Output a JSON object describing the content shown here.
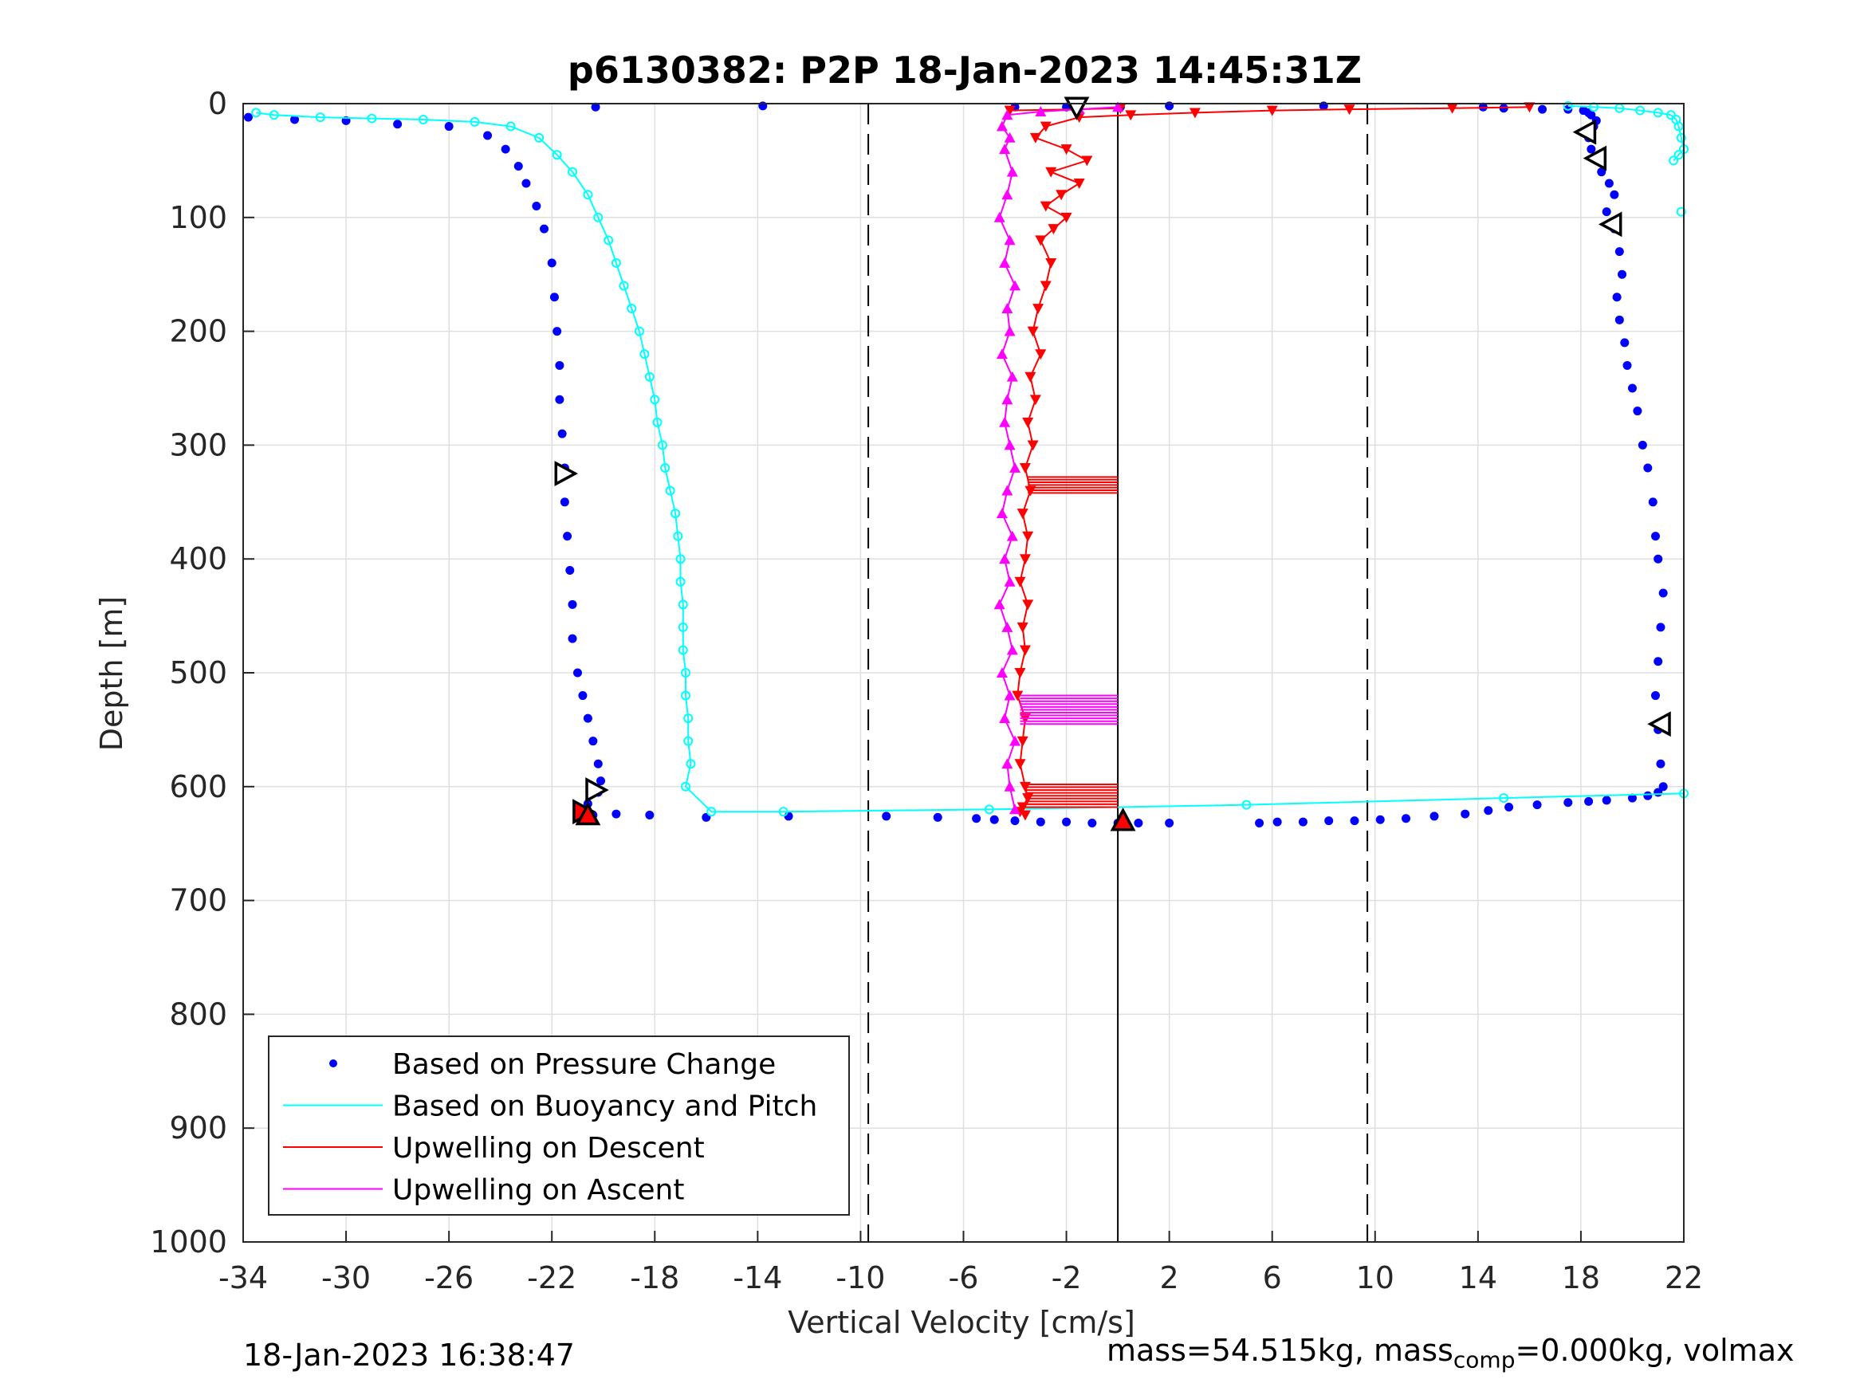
{
  "chart_data": {
    "type": "scatter",
    "title": "p6130382: P2P 18-Jan-2023 14:45:31Z",
    "xlabel": "Vertical Velocity [cm/s]",
    "ylabel": "Depth [m]",
    "xlim": [
      -34,
      22
    ],
    "ylim": [
      0,
      1000
    ],
    "y_reversed": true,
    "xticks": [
      -34,
      -30,
      -26,
      -22,
      -18,
      -14,
      -10,
      -6,
      -2,
      2,
      6,
      10,
      14,
      18,
      22
    ],
    "yticks": [
      0,
      100,
      200,
      300,
      400,
      500,
      600,
      700,
      800,
      900,
      1000
    ],
    "grid": true,
    "legend_position": "bottom-left",
    "reference_lines": [
      {
        "x": -9.7,
        "style": "dashed",
        "color": "#000000"
      },
      {
        "x": 9.7,
        "style": "dashed",
        "color": "#000000"
      },
      {
        "x": 0,
        "style": "solid",
        "color": "#000000"
      }
    ],
    "series": [
      {
        "name": "Based on Pressure Change",
        "style": "dots",
        "color": "#0000ff",
        "segments": [
          {
            "x": [
              -33.8,
              -32,
              -30,
              -28,
              -26,
              -24.5,
              -23.8,
              -23.3,
              -23,
              -22.6,
              -22.3,
              -22,
              -21.9,
              -21.8,
              -21.7,
              -21.7,
              -21.6,
              -21.5,
              -21.5,
              -21.4,
              -21.3,
              -21.2,
              -21.2,
              -21,
              -20.8,
              -20.6,
              -20.4,
              -20.2,
              -20.1,
              -20.2,
              -20.6,
              -20.9
            ],
            "y": [
              12,
              14,
              15,
              18,
              20,
              28,
              40,
              55,
              70,
              90,
              110,
              140,
              170,
              200,
              230,
              260,
              290,
              320,
              350,
              380,
              410,
              440,
              470,
              500,
              520,
              540,
              560,
              580,
              595,
              605,
              615,
              622
            ]
          },
          {
            "x": [
              -20.4,
              -19.5,
              -18.2,
              -16,
              -12.8,
              -9,
              -7,
              -5.5,
              -4.8,
              -4,
              -3,
              -2,
              -1,
              0,
              0.8,
              2,
              5.5,
              6.2,
              7.2,
              8.2,
              9.2,
              10.2,
              11.2,
              12.3,
              13.5,
              14.4,
              15.2,
              16.3,
              17.5,
              18.3,
              19,
              20,
              20.6,
              21,
              21.2
            ],
            "y": [
              625,
              624,
              625,
              627,
              626,
              626,
              627,
              628,
              629,
              630,
              631,
              631,
              632,
              632,
              632,
              632,
              632,
              631,
              631,
              630,
              630,
              629,
              628,
              626,
              624,
              621,
              618,
              616,
              614,
              613,
              612,
              610,
              608,
              605,
              600
            ]
          },
          {
            "x": [
              21.1,
              21.0,
              20.9,
              21.0,
              21.1,
              21.2,
              21.0,
              20.9,
              20.8,
              20.6,
              20.4,
              20.2,
              20.0,
              19.8,
              19.7,
              19.5,
              19.4,
              19.6,
              19.5,
              19.3,
              19.0,
              19.3,
              19.1,
              18.8,
              18.6,
              18.4,
              18.3,
              18.5,
              18.6,
              18.4,
              18.3,
              18.1,
              17.5,
              16.5,
              15,
              14.2
            ],
            "y": [
              580,
              550,
              520,
              490,
              460,
              430,
              400,
              380,
              350,
              320,
              300,
              270,
              250,
              230,
              210,
              190,
              170,
              150,
              130,
              110,
              95,
              80,
              70,
              60,
              50,
              40,
              30,
              20,
              15,
              10,
              8,
              6,
              5,
              5,
              4,
              3
            ]
          },
          {
            "x": [
              -20.3,
              -13.8,
              2,
              8,
              0.1,
              -2,
              -4
            ],
            "y": [
              3,
              2,
              2,
              2,
              3,
              3,
              3
            ]
          }
        ]
      },
      {
        "name": "Based on Buoyancy and Pitch",
        "style": "line-markers",
        "color": "#00ffff",
        "segments": [
          {
            "x": [
              -33.5,
              -32.8,
              -31,
              -29,
              -27,
              -25,
              -23.6,
              -22.5,
              -21.8,
              -21.2,
              -20.6,
              -20.2,
              -19.8,
              -19.5,
              -19.2,
              -18.9,
              -18.6,
              -18.4,
              -18.2,
              -18.0,
              -17.9,
              -17.7,
              -17.6,
              -17.4,
              -17.2,
              -17.1,
              -17.0,
              -17.0,
              -16.9,
              -16.9,
              -16.9,
              -16.8,
              -16.8,
              -16.7,
              -16.7,
              -16.6,
              -16.8,
              -15.8,
              -13,
              -5,
              5,
              15,
              22
            ],
            "y": [
              8,
              10,
              12,
              13,
              14,
              16,
              20,
              30,
              45,
              60,
              80,
              100,
              120,
              140,
              160,
              180,
              200,
              220,
              240,
              260,
              280,
              300,
              320,
              340,
              360,
              380,
              400,
              420,
              440,
              460,
              480,
              500,
              520,
              540,
              560,
              580,
              600,
              622,
              622,
              620,
              616,
              610,
              606
            ]
          },
          {
            "x": [
              17.5,
              18.5,
              19.5,
              20.3,
              21,
              21.5,
              21.7,
              21.8,
              21.9,
              22,
              21.8,
              21.6
            ],
            "y": [
              2,
              3,
              4,
              6,
              8,
              10,
              14,
              20,
              30,
              40,
              45,
              50
            ]
          },
          {
            "x": [
              21.9
            ],
            "y": [
              95
            ]
          }
        ]
      },
      {
        "name": "Upwelling on Descent",
        "style": "line-markers",
        "color": "#ff0000",
        "segments": [
          {
            "x": [
              16,
              13,
              9,
              6,
              3,
              0.5,
              -1.5,
              -2.8,
              -3.2,
              -2.0,
              -1.2,
              -2.6,
              -1.5,
              -2.2,
              -2.8,
              -2.0,
              -2.5,
              -3.0,
              -2.6,
              -2.8,
              -3.1,
              -3.3,
              -3.0,
              -3.4,
              -3.2,
              -3.5,
              -3.3,
              -3.6,
              -3.4,
              -3.7,
              -3.5,
              -3.6,
              -3.8,
              -3.5,
              -3.7,
              -3.6,
              -3.8,
              -3.9,
              -3.6,
              -3.7,
              -3.8,
              -3.6,
              -3.5,
              -3.7,
              -3.8,
              -3.6
            ],
            "y": [
              3,
              4,
              5,
              6,
              8,
              10,
              12,
              20,
              30,
              40,
              50,
              60,
              70,
              80,
              90,
              100,
              110,
              120,
              140,
              160,
              180,
              200,
              220,
              240,
              260,
              280,
              300,
              320,
              340,
              360,
              380,
              400,
              420,
              440,
              460,
              480,
              500,
              520,
              540,
              560,
              580,
              600,
              610,
              618,
              622,
              625
            ]
          },
          {
            "x": [
              -4.2,
              -1.5,
              0.1,
              0.1
            ],
            "y": [
              6,
              5,
              4,
              4
            ]
          }
        ]
      },
      {
        "name": "Upwelling on Ascent",
        "style": "line-markers",
        "color": "#ff00ff",
        "segments": [
          {
            "x": [
              -4.0,
              -4.2,
              -4.3,
              -4.0,
              -4.4,
              -4.2,
              -4.5,
              -4.1,
              -4.3,
              -4.6,
              -4.2,
              -4.4,
              -4.1,
              -4.5,
              -4.3,
              -4.0,
              -4.2,
              -4.4,
              -4.3,
              -4.1,
              -4.5,
              -4.2,
              -4.3,
              -4.0,
              -4.4,
              -4.2,
              -4.6,
              -4.3,
              -4.1,
              -4.4,
              -4.2,
              -4.5,
              -4.3,
              -3.0,
              -1.5,
              0
            ],
            "y": [
              620,
              600,
              580,
              560,
              540,
              520,
              500,
              480,
              460,
              440,
              420,
              400,
              380,
              360,
              340,
              320,
              300,
              280,
              260,
              240,
              220,
              200,
              180,
              160,
              140,
              120,
              100,
              80,
              60,
              40,
              30,
              20,
              10,
              7,
              5,
              3
            ]
          }
        ]
      }
    ],
    "bands": [
      {
        "series": "Upwelling on Descent",
        "x": [
          -3.5,
          0
        ],
        "y": [
          328,
          342
        ],
        "rows": 7
      },
      {
        "series": "Upwelling on Ascent",
        "x": [
          -3.8,
          0
        ],
        "y": [
          520,
          545
        ],
        "rows": 11
      },
      {
        "series": "Upwelling on Descent",
        "x": [
          -3.6,
          0
        ],
        "y": [
          598,
          618
        ],
        "rows": 9
      }
    ],
    "triangle_markers": [
      {
        "shape": "right",
        "x": -21.5,
        "y": 325,
        "fill": "#ffffff"
      },
      {
        "shape": "right",
        "x": -20.3,
        "y": 603,
        "fill": "#ffffff"
      },
      {
        "shape": "right",
        "x": -20.8,
        "y": 622,
        "fill": "#ff0000"
      },
      {
        "shape": "up",
        "x": -20.6,
        "y": 625,
        "fill": "#ff0000"
      },
      {
        "shape": "down",
        "x": -1.6,
        "y": 3,
        "fill": "#ffffff"
      },
      {
        "shape": "up",
        "x": 0.2,
        "y": 630,
        "fill": "#ff0000"
      },
      {
        "shape": "left",
        "x": 18.2,
        "y": 25,
        "fill": "#ffffff"
      },
      {
        "shape": "left",
        "x": 18.6,
        "y": 48,
        "fill": "#ffffff"
      },
      {
        "shape": "left",
        "x": 19.2,
        "y": 106,
        "fill": "#ffffff"
      },
      {
        "shape": "left",
        "x": 21.1,
        "y": 545,
        "fill": "#ffffff"
      }
    ]
  },
  "footer": {
    "timestamp": "18-Jan-2023 16:38:47",
    "mass_text": "mass=54.515kg, mass",
    "mass_sub": "comp",
    "mass_rest": "=0.000kg, volmax"
  }
}
